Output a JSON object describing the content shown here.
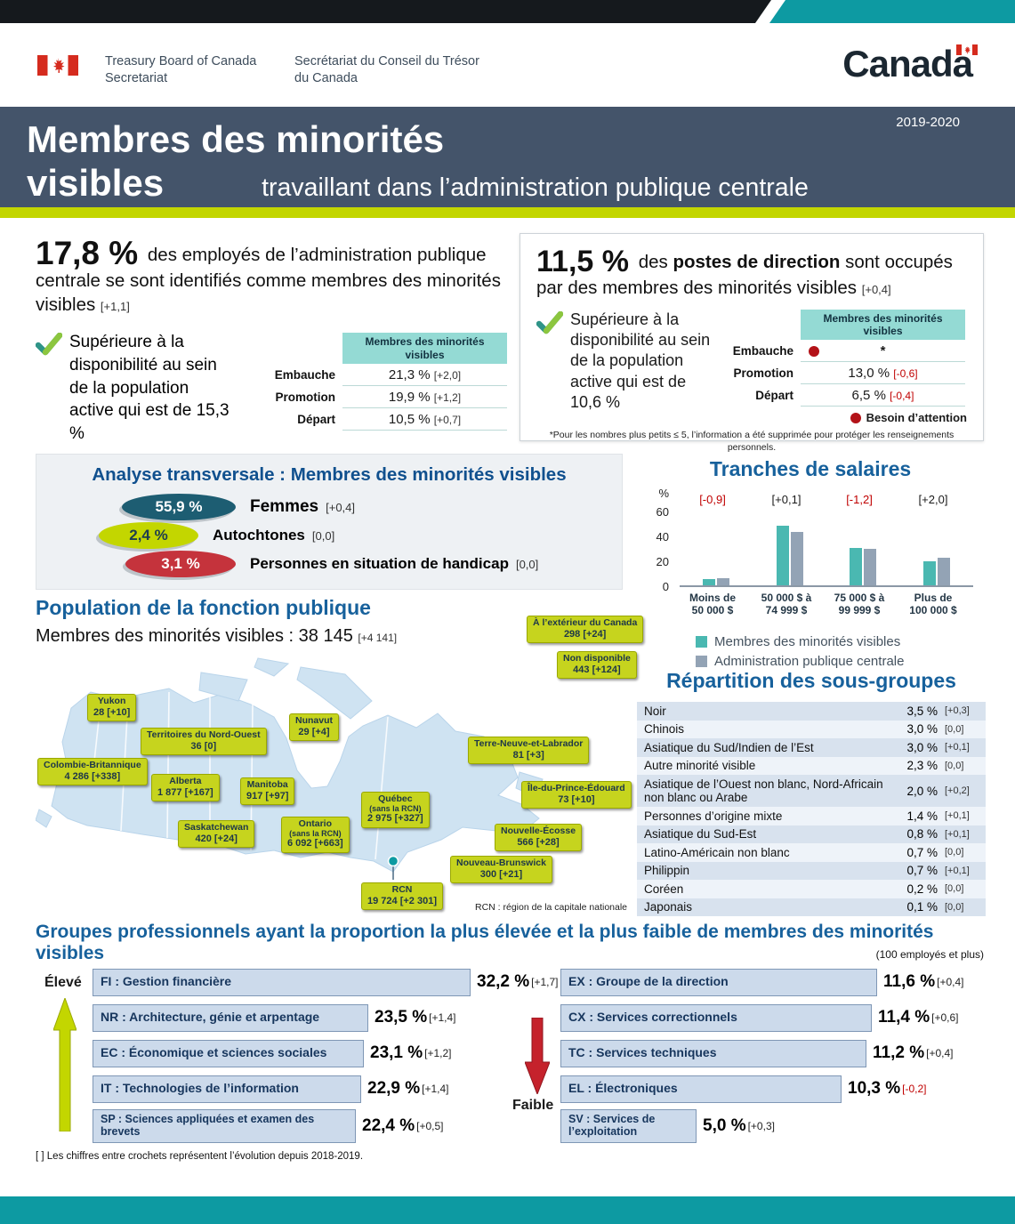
{
  "colors": {
    "navy_band": "#44546a",
    "chartreuse": "#c3d600",
    "teal_accent": "#0d9aa2",
    "teal_table_header": "#94dad4",
    "series_minorites": "#4ab8b1",
    "series_apc": "#93a3b5",
    "section_title_blue": "#17619c",
    "negative_red": "#c00000",
    "flag_red": "#d52b1e"
  },
  "fip": {
    "en": "Treasury Board of Canada\nSecretariat",
    "fr": "Secrétariat du Conseil du Trésor\ndu Canada",
    "wordmark": "Canada"
  },
  "banner": {
    "year": "2019-2020",
    "title_line1": "Membres des minorités",
    "title_line2": "visibles",
    "subtitle": "travaillant dans l’administration publique centrale"
  },
  "stat_left": {
    "value": "17,8 %",
    "text": "des employés de l’administration publique centrale se sont identifiés comme membres des minorités visibles",
    "delta": "[+1,1]",
    "note": "Supérieure à la disponibilité au sein de la population active qui est de 15,3 %",
    "table": {
      "header": "Membres des minorités visibles",
      "rows": [
        {
          "label": "Embauche",
          "value": "21,3 %",
          "delta": "[+2,0]"
        },
        {
          "label": "Promotion",
          "value": "19,9 %",
          "delta": "[+1,2]"
        },
        {
          "label": "Départ",
          "value": "10,5 %",
          "delta": "[+0,7]"
        }
      ]
    }
  },
  "stat_right": {
    "value": "11,5 %",
    "text_before_bold": "des",
    "text_bold": "postes de direction",
    "text_after_bold": "sont occupés par des membres des minorités visibles",
    "delta": "[+0,4]",
    "note": "Supérieure à la disponibilité au sein de la population active qui est de 10,6 %",
    "table": {
      "header": "Membres des minorités visibles",
      "rows": [
        {
          "label": "Embauche",
          "value": "*",
          "delta": ""
        },
        {
          "label": "Promotion",
          "value": "13,0 %",
          "delta": "[-0,6]"
        },
        {
          "label": "Départ",
          "value": "6,5 %",
          "delta": "[-0,4]"
        }
      ]
    },
    "attention_label": "Besoin d’attention",
    "footnote": "*Pour les nombres plus petits ≤ 5, l’information a été supprimée pour protéger les renseignements personnels."
  },
  "transversal": {
    "title": "Analyse transversale : Membres des minorités visibles",
    "items": [
      {
        "value": "55,9 %",
        "label": "Femmes",
        "delta": "[+0,4]"
      },
      {
        "value": "2,4 %",
        "label": "Autochtones",
        "delta": "[0,0]"
      },
      {
        "value": "3,1 %",
        "label": "Personnes en situation de handicap",
        "delta": "[0,0]"
      }
    ]
  },
  "chart_data": {
    "type": "bar",
    "title": "Tranches de salaires",
    "ylabel": "%",
    "ylim": [
      0,
      60
    ],
    "yticks": [
      "60",
      "40",
      "20",
      "0"
    ],
    "grid": false,
    "categories": [
      "Moins de\n50 000 $",
      "50 000 $ à\n74 999 $",
      "75 000 $ à\n99 999 $",
      "Plus de\n100 000 $"
    ],
    "annotations": [
      "[-0,9]",
      "[+0,1]",
      "[-1,2]",
      "[+2,0]"
    ],
    "series": [
      {
        "name": "Membres des minorités visibles",
        "values": [
          5,
          48,
          30,
          19
        ]
      },
      {
        "name": "Administration publique centrale",
        "values": [
          6,
          43,
          29,
          22
        ]
      }
    ],
    "legend_position": "bottom-left"
  },
  "population": {
    "title": "Population de la fonction publique",
    "subtitle_label": "Membres des minorités visibles :",
    "total": "38 145",
    "total_delta": "[+4 141]",
    "rcn_note": "RCN : région de la capitale nationale",
    "outside": [
      {
        "name": "À l’extérieur du Canada",
        "value": "298 [+24]"
      },
      {
        "name": "Non disponible",
        "value": "443 [+124]"
      }
    ],
    "regions": [
      {
        "name": "Yukon",
        "value": "28 [+10]"
      },
      {
        "name": "Territoires du Nord-Ouest",
        "value": "36 [0]"
      },
      {
        "name": "Nunavut",
        "value": "29 [+4]"
      },
      {
        "name": "Colombie-Britannique",
        "value": "4 286 [+338]"
      },
      {
        "name": "Alberta",
        "value": "1 877 [+167]"
      },
      {
        "name": "Manitoba",
        "value": "917 [+97]"
      },
      {
        "name": "Saskatchewan",
        "value": "420 [+24]"
      },
      {
        "name": "Ontario",
        "sub": "(sans la RCN)",
        "value": "6 092 [+663]"
      },
      {
        "name": "Québec",
        "sub": "(sans la RCN)",
        "value": "2 975 [+327]"
      },
      {
        "name": "Terre-Neuve-et-Labrador",
        "value": "81 [+3]"
      },
      {
        "name": "Île-du-Prince-Édouard",
        "value": "73 [+10]"
      },
      {
        "name": "Nouvelle-Écosse",
        "value": "566 [+28]"
      },
      {
        "name": "Nouveau-Brunswick",
        "value": "300 [+21]"
      },
      {
        "name": "RCN",
        "value": "19 724 [+2 301]"
      }
    ]
  },
  "subgroups": {
    "title": "Répartition des sous-groupes",
    "rows": [
      {
        "label": "Noir",
        "value": "3,5 %",
        "delta": "[+0,3]"
      },
      {
        "label": "Chinois",
        "value": "3,0 %",
        "delta": "[0,0]"
      },
      {
        "label": "Asiatique du Sud/Indien de l’Est",
        "value": "3,0 %",
        "delta": "[+0,1]"
      },
      {
        "label": "Autre minorité visible",
        "value": "2,3 %",
        "delta": "[0,0]"
      },
      {
        "label": "Asiatique de l’Ouest non blanc, Nord-Africain non blanc ou Arabe",
        "value": "2,0 %",
        "delta": "[+0,2]"
      },
      {
        "label": "Personnes d’origine mixte",
        "value": "1,4 %",
        "delta": "[+0,1]"
      },
      {
        "label": "Asiatique du Sud-Est",
        "value": "0,8 %",
        "delta": "[+0,1]"
      },
      {
        "label": "Latino-Américain non blanc",
        "value": "0,7 %",
        "delta": "[0,0]"
      },
      {
        "label": "Philippin",
        "value": "0,7 %",
        "delta": "[+0,1]"
      },
      {
        "label": "Coréen",
        "value": "0,2 %",
        "delta": "[0,0]"
      },
      {
        "label": "Japonais",
        "value": "0,1 %",
        "delta": "[0,0]"
      }
    ]
  },
  "groups": {
    "title": "Groupes professionnels ayant la proportion la plus élevée et la plus faible de membres des minorités visibles",
    "note": "(100 employés et plus)",
    "high_label": "Élevé",
    "low_label": "Faible",
    "high": [
      {
        "label": "FI : Gestion financière",
        "value": 32.2,
        "value_text": "32,2 %",
        "delta": "[+1,7]"
      },
      {
        "label": "NR : Architecture, génie et arpentage",
        "value": 23.5,
        "value_text": "23,5 %",
        "delta": "[+1,4]"
      },
      {
        "label": "EC : Économique et sciences sociales",
        "value": 23.1,
        "value_text": "23,1 %",
        "delta": "[+1,2]"
      },
      {
        "label": "IT : Technologies de l’information",
        "value": 22.9,
        "value_text": "22,9 %",
        "delta": "[+1,4]"
      },
      {
        "label": "SP : Sciences appliquées et examen des brevets",
        "value": 22.4,
        "value_text": "22,4 %",
        "delta": "[+0,5]"
      }
    ],
    "low": [
      {
        "label": "EX : Groupe de la direction",
        "value": 11.6,
        "value_text": "11,6 %",
        "delta": "[+0,4]"
      },
      {
        "label": "CX : Services correctionnels",
        "value": 11.4,
        "value_text": "11,4 %",
        "delta": "[+0,6]"
      },
      {
        "label": "TC : Services techniques",
        "value": 11.2,
        "value_text": "11,2 %",
        "delta": "[+0,4]"
      },
      {
        "label": "EL : Électroniques",
        "value": 10.3,
        "value_text": "10,3 %",
        "delta": "[-0,2]"
      },
      {
        "label": "SV : Services de l’exploitation",
        "value": 5.0,
        "value_text": "5,0 %",
        "delta": "[+0,3]"
      }
    ]
  },
  "footnote": "[ ] Les chiffres entre crochets représentent l’évolution depuis 2018-2019."
}
